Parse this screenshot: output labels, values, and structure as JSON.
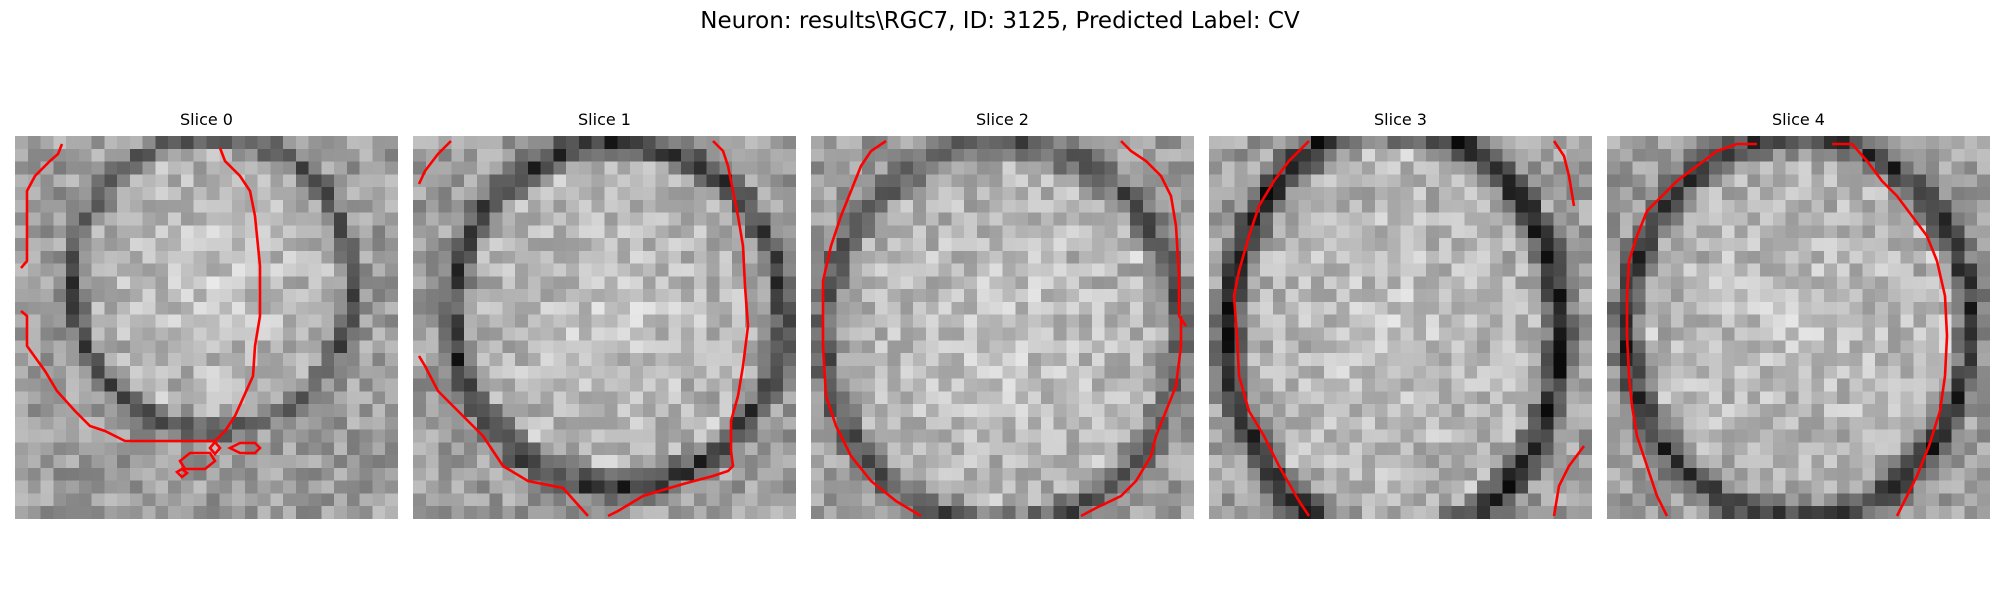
{
  "figure": {
    "title": "Neuron: results\\RGC7, ID: 3125, Predicted Label: CV"
  },
  "colors": {
    "contour": "#ff0000",
    "colormap": "grayscale"
  },
  "panels": [
    {
      "title": "Slice 0"
    },
    {
      "title": "Slice 1"
    },
    {
      "title": "Slice 2"
    },
    {
      "title": "Slice 3"
    },
    {
      "title": "Slice 4"
    }
  ]
}
